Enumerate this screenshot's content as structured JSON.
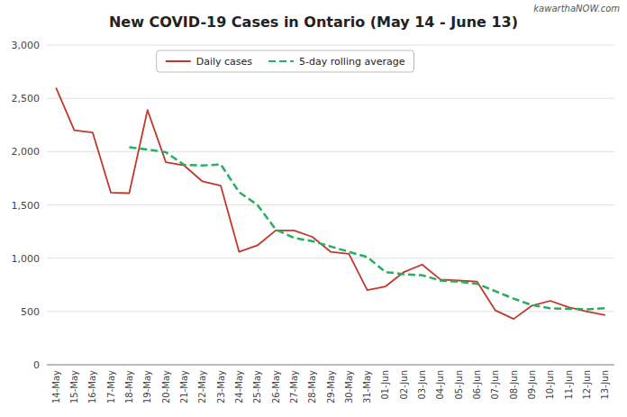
{
  "chart_data": {
    "type": "line",
    "title": "New COVID-19 Cases in Ontario (May 14 - June 13)",
    "annotations": [
      "kawarthaNOW.com"
    ],
    "categories": [
      "14-May",
      "15-May",
      "16-May",
      "17-May",
      "18-May",
      "19-May",
      "20-May",
      "21-May",
      "22-May",
      "23-May",
      "24-May",
      "25-May",
      "26-May",
      "27-May",
      "28-May",
      "29-May",
      "30-May",
      "31-May",
      "01-Jun",
      "02-Jun",
      "03-Jun",
      "04-Jun",
      "05-Jun",
      "06-Jun",
      "07-Jun",
      "08-Jun",
      "09-Jun",
      "10-Jun",
      "11-Jun",
      "12-Jun",
      "13-Jun"
    ],
    "series": [
      {
        "name": "Daily cases",
        "color": "#c0392b",
        "line_style": "solid",
        "values": [
          2600,
          2200,
          2180,
          1615,
          1610,
          2390,
          1900,
          1870,
          1720,
          1680,
          1060,
          1120,
          1260,
          1260,
          1200,
          1060,
          1040,
          700,
          735,
          870,
          940,
          800,
          790,
          780,
          510,
          430,
          555,
          600,
          540,
          500,
          465
        ]
      },
      {
        "name": "5-day rolling average",
        "color": "#27ae60",
        "line_style": "dashed",
        "values": [
          null,
          null,
          null,
          null,
          2040,
          2020,
          1995,
          1875,
          1870,
          1880,
          1620,
          1500,
          1270,
          1190,
          1160,
          1110,
          1060,
          1010,
          870,
          850,
          840,
          790,
          780,
          760,
          690,
          620,
          560,
          530,
          525,
          520,
          530
        ]
      }
    ],
    "ylim": [
      0,
      3000
    ],
    "yticks": [
      0,
      500,
      {
        "value": 1000,
        "label": "1,000"
      },
      {
        "value": 1500,
        "label": "1,500"
      },
      {
        "value": 2000,
        "label": "2,000"
      },
      {
        "value": 2500,
        "label": "2,500"
      },
      {
        "value": 3000,
        "label": "3,000"
      }
    ],
    "grid": true,
    "legend": "top"
  }
}
